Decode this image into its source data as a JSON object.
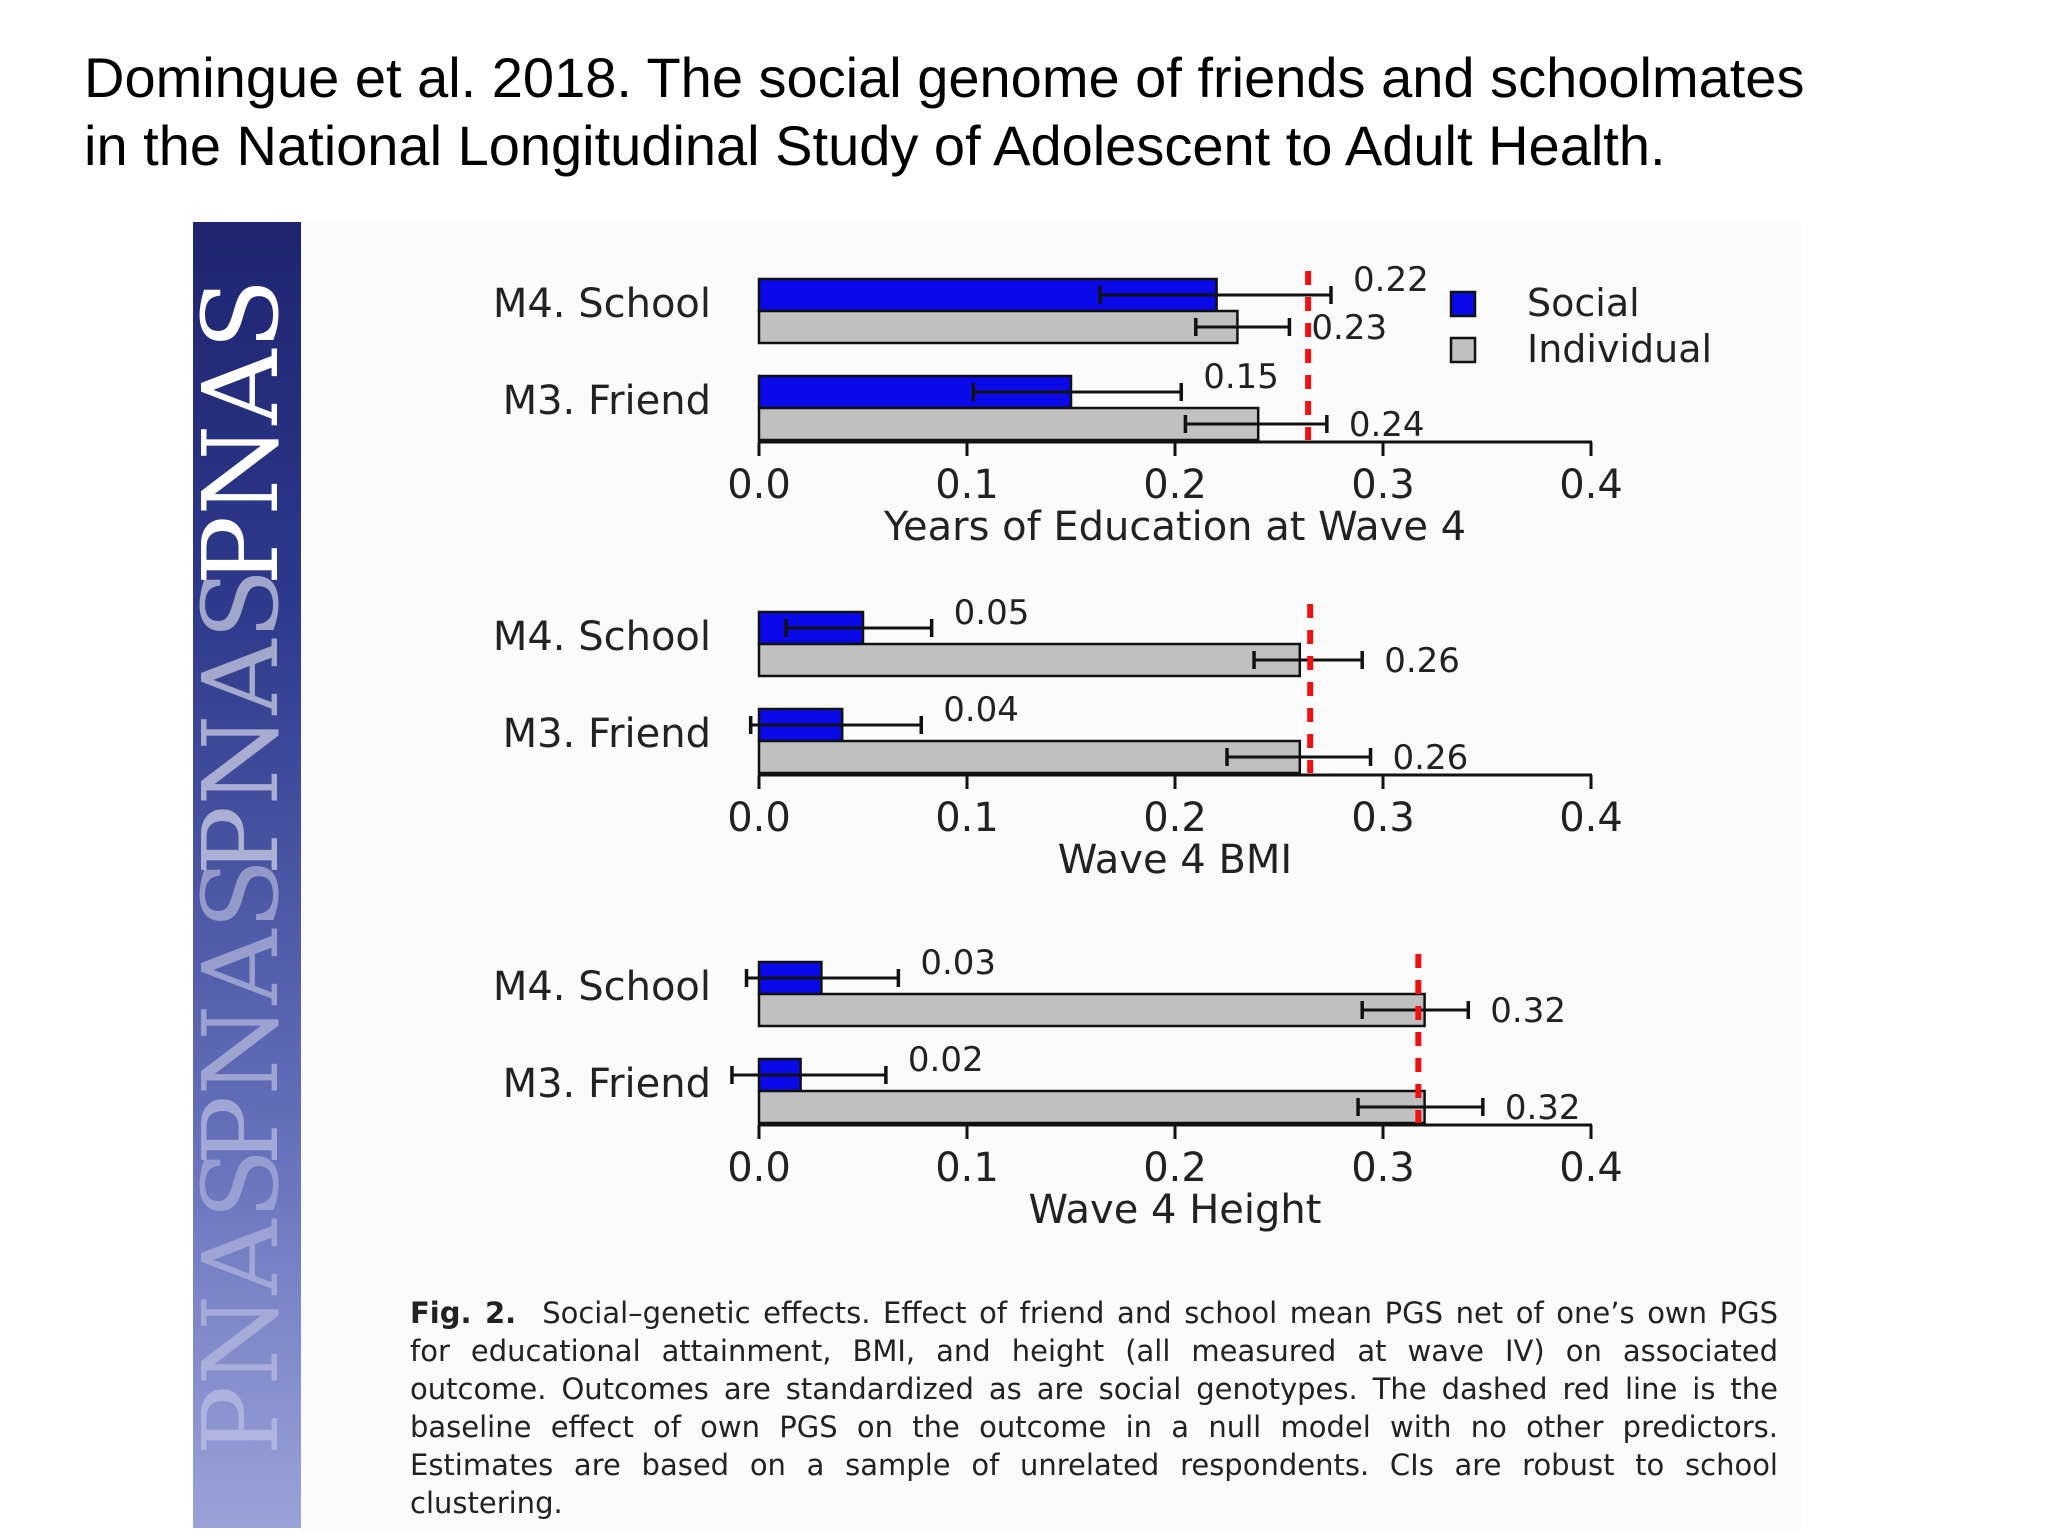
{
  "slide": {
    "title_line1": "Domingue et al. 2018. The social genome of friends and schoolmates",
    "title_line2": "in the National Longitudinal Study of Adolescent to Adult Health."
  },
  "banner": {
    "repeated_text": "PNAS",
    "colors": {
      "top": "#1e2470",
      "bottom": "#9aa2d8"
    }
  },
  "colors": {
    "social": "#0a0ae8",
    "individual": "#c0c0c0",
    "baseline": "#ee1111",
    "axis": "#111111"
  },
  "legend": {
    "social_label": "Social",
    "individual_label": "Individual"
  },
  "caption": {
    "label": "Fig. 2.",
    "text": "Social–genetic effects. Effect of friend and school mean PGS net of one’s own PGS for educational attainment, BMI, and height (all measured at wave IV) on associated outcome. Outcomes are standardized as are social genotypes. The dashed red line is the baseline effect of own PGS on the outcome in a null model with no other predictors. Estimates are based on a sample of unrelated respondents. CIs are robust to school clustering."
  },
  "chart_data": [
    {
      "type": "bar",
      "orientation": "horizontal",
      "xlabel": "Years of Education at Wave 4",
      "xlim": [
        0,
        0.4
      ],
      "xticks": [
        "0.0",
        "0.1",
        "0.2",
        "0.3",
        "0.4"
      ],
      "baseline": 0.264,
      "rows": [
        {
          "label": "M4. School",
          "social": {
            "value": 0.22,
            "label": "0.22",
            "ci": [
              0.164,
              0.275
            ]
          },
          "individual": {
            "value": 0.23,
            "label": "0.23",
            "ci": [
              0.21,
              0.255
            ]
          }
        },
        {
          "label": "M3. Friend",
          "social": {
            "value": 0.15,
            "label": "0.15",
            "ci": [
              0.103,
              0.203
            ]
          },
          "individual": {
            "value": 0.24,
            "label": "0.24",
            "ci": [
              0.205,
              0.273
            ]
          }
        }
      ]
    },
    {
      "type": "bar",
      "orientation": "horizontal",
      "xlabel": "Wave 4 BMI",
      "xlim": [
        0,
        0.4
      ],
      "xticks": [
        "0.0",
        "0.1",
        "0.2",
        "0.3",
        "0.4"
      ],
      "baseline": 0.265,
      "rows": [
        {
          "label": "M4. School",
          "social": {
            "value": 0.05,
            "label": "0.05",
            "ci": [
              0.013,
              0.083
            ]
          },
          "individual": {
            "value": 0.26,
            "label": "0.26",
            "ci": [
              0.238,
              0.29
            ]
          }
        },
        {
          "label": "M3. Friend",
          "social": {
            "value": 0.04,
            "label": "0.04",
            "ci": [
              -0.004,
              0.078
            ]
          },
          "individual": {
            "value": 0.26,
            "label": "0.26",
            "ci": [
              0.225,
              0.294
            ]
          }
        }
      ]
    },
    {
      "type": "bar",
      "orientation": "horizontal",
      "xlabel": "Wave 4 Height",
      "xlim": [
        0,
        0.4
      ],
      "xticks": [
        "0.0",
        "0.1",
        "0.2",
        "0.3",
        "0.4"
      ],
      "baseline": 0.317,
      "rows": [
        {
          "label": "M4. School",
          "social": {
            "value": 0.03,
            "label": "0.03",
            "ci": [
              -0.006,
              0.067
            ]
          },
          "individual": {
            "value": 0.32,
            "label": "0.32",
            "ci": [
              0.29,
              0.341
            ]
          }
        },
        {
          "label": "M3. Friend",
          "social": {
            "value": 0.02,
            "label": "0.02",
            "ci": [
              -0.013,
              0.061
            ]
          },
          "individual": {
            "value": 0.32,
            "label": "0.32",
            "ci": [
              0.288,
              0.348
            ]
          }
        }
      ]
    }
  ]
}
